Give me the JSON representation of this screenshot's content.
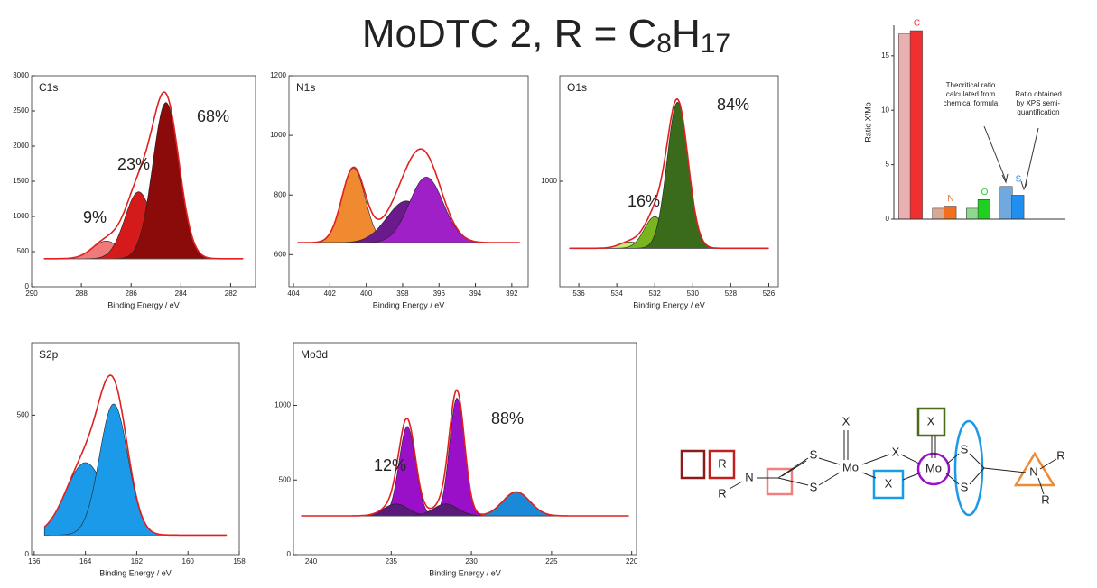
{
  "title": {
    "main": "MoDTC 2, R = C",
    "sub1": "8",
    "mid": "H",
    "sub2": "17"
  },
  "chart_data": [
    {
      "type": "xps",
      "label": "C1s",
      "x_label": "Binding Energy / eV",
      "xlim": [
        290,
        281
      ],
      "xticks": [
        290,
        288,
        286,
        284,
        282
      ],
      "ylim": [
        0,
        3000
      ],
      "yticks": [
        0,
        500,
        1000,
        1500,
        2000,
        2500,
        3000
      ],
      "baseline": 400,
      "envelope_color": "#e02020",
      "peaks": [
        {
          "center": 287.0,
          "height": 250,
          "fwhm": 1.3,
          "color": "#f07a7a"
        },
        {
          "center": 285.7,
          "height": 950,
          "fwhm": 1.3,
          "color": "#d41a1a"
        },
        {
          "center": 284.6,
          "height": 2220,
          "fwhm": 1.25,
          "color": "#8b0a0a"
        }
      ],
      "annotations": [
        "9%",
        "23%",
        "68%"
      ]
    },
    {
      "type": "xps",
      "label": "N1s",
      "x_label": "Binding Energy / eV",
      "xlim": [
        404.25,
        391.1
      ],
      "xticks": [
        404,
        402,
        400,
        398,
        396,
        394,
        392
      ],
      "ylim": [
        492,
        1200
      ],
      "yticks": [
        600,
        800,
        1000,
        1200
      ],
      "baseline": 640,
      "envelope_color": "#e02020",
      "peaks": [
        {
          "center": 400.7,
          "height": 250,
          "fwhm": 1.5,
          "color": "#f08a30"
        },
        {
          "center": 397.8,
          "height": 140,
          "fwhm": 2.5,
          "color": "#6a1a8a"
        },
        {
          "center": 396.7,
          "height": 220,
          "fwhm": 2.2,
          "color": "#a020c8"
        }
      ],
      "annotations": []
    },
    {
      "type": "xps",
      "label": "O1s",
      "x_label": "Binding Energy / eV",
      "xlim": [
        537,
        525.5
      ],
      "xticks": [
        536,
        534,
        532,
        530,
        528,
        526
      ],
      "ylim": [
        800,
        1200
      ],
      "yticks": [
        1000
      ],
      "baseline": 873,
      "envelope_color": "#e02020",
      "peaks": [
        {
          "center": 533.3,
          "height": 12,
          "fwhm": 1.3,
          "color": "#c8e870"
        },
        {
          "center": 532.0,
          "height": 60,
          "fwhm": 1.3,
          "color": "#7ab520"
        },
        {
          "center": 530.8,
          "height": 277,
          "fwhm": 1.3,
          "color": "#3a6b1a"
        }
      ],
      "annotations": [
        "16%",
        "84%"
      ]
    },
    {
      "type": "xps",
      "label": "S2p",
      "x_label": "Binding Energy / eV",
      "xlim": [
        166.1,
        158
      ],
      "xticks": [
        166,
        164,
        162,
        160,
        158
      ],
      "ylim": [
        0,
        760
      ],
      "yticks": [
        0,
        500
      ],
      "baseline": 70,
      "envelope_color": "#e02020",
      "peaks": [
        {
          "center": 164.0,
          "height": 260,
          "fwhm": 1.8,
          "color": "#1a9ae8"
        },
        {
          "center": 162.9,
          "height": 470,
          "fwhm": 1.3,
          "color": "#1a9ae8"
        }
      ],
      "annotations": []
    },
    {
      "type": "xps",
      "label": "Mo3d",
      "x_label": "Binding Energy / eV",
      "xlim": [
        241.1,
        219.7
      ],
      "xticks": [
        240,
        235,
        230,
        225,
        220
      ],
      "ylim": [
        0,
        1420
      ],
      "yticks": [
        0,
        500,
        1000
      ],
      "baseline": 260,
      "envelope_color": "#e02020",
      "peaks": [
        {
          "center": 234.0,
          "height": 600,
          "fwhm": 1.2,
          "color": "#9a10c8"
        },
        {
          "center": 230.9,
          "height": 790,
          "fwhm": 1.1,
          "color": "#9a10c8"
        },
        {
          "center": 234.7,
          "height": 80,
          "fwhm": 1.8,
          "color": "#5a1a7a"
        },
        {
          "center": 231.6,
          "height": 80,
          "fwhm": 1.8,
          "color": "#5a1a7a"
        },
        {
          "center": 227.2,
          "height": 160,
          "fwhm": 2.0,
          "color": "#1a8ad8"
        }
      ],
      "annotations": [
        "12%",
        "88%"
      ]
    },
    {
      "type": "bar",
      "y_label": "Ratio X/Mo",
      "categories": [
        "C",
        "N",
        "O",
        "S"
      ],
      "ylim": [
        0,
        17.8
      ],
      "yticks": [
        0,
        5,
        10,
        15
      ],
      "series": [
        {
          "colors": [
            "#e8b0b0",
            "#d8a890",
            "#90d890",
            "#70a8e0"
          ],
          "values": [
            17,
            1,
            1,
            3
          ]
        },
        {
          "colors": [
            "#f03030",
            "#f07020",
            "#20d020",
            "#2090f0"
          ],
          "values": [
            17.3,
            1.2,
            1.8,
            2.2
          ]
        }
      ],
      "annotations": [
        [
          "Theoritical ratio",
          "calculated from",
          "chemical formula"
        ],
        [
          "Ratio obtained",
          "by XPS semi-",
          "quantification"
        ]
      ]
    }
  ],
  "diagram": {
    "labels": [
      "R",
      "N",
      "R",
      "S",
      "S",
      "X",
      "Mo",
      "X",
      "X",
      "X",
      "Mo",
      "S",
      "S",
      "N",
      "R",
      "R"
    ]
  }
}
